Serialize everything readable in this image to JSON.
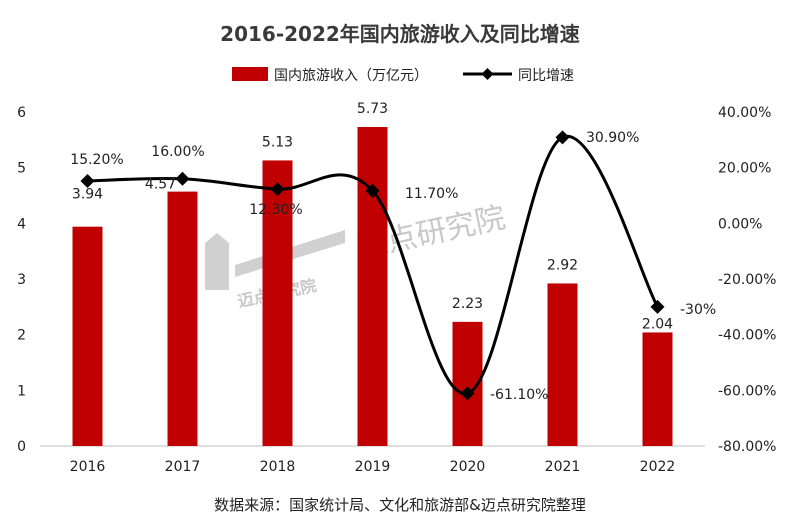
{
  "title": "2016-2022年国内旅游收入及同比增速",
  "source": "数据来源：国家统计局、文化和旅游部&迈点研究院整理",
  "watermark": {
    "text": "迈点研究院",
    "logo_text": "迈点研究院"
  },
  "colors": {
    "bar": "#c00000",
    "line": "#000000",
    "axis": "#bfbfbf"
  },
  "chart_data": {
    "type": "bar",
    "categories": [
      "2016",
      "2017",
      "2018",
      "2019",
      "2020",
      "2021",
      "2022"
    ],
    "series": [
      {
        "name": "国内旅游收入（万亿元）",
        "type": "bar",
        "axis": "left",
        "values": [
          3.94,
          4.57,
          5.13,
          5.73,
          2.23,
          2.92,
          2.04
        ],
        "labels": [
          "3.94",
          "4.57",
          "5.13",
          "5.73",
          "2.23",
          "2.92",
          "2.04"
        ]
      },
      {
        "name": "同比增速",
        "type": "line",
        "axis": "right",
        "marker": "diamond",
        "smooth": true,
        "values": [
          15.2,
          16.0,
          12.3,
          11.7,
          -61.1,
          30.9,
          -30.0
        ],
        "labels": [
          "15.20%",
          "16.00%",
          "12.30%",
          "11.70%",
          "-61.10%",
          "30.90%",
          "-30%"
        ]
      }
    ],
    "y_left": {
      "ylim": [
        0,
        6
      ],
      "ticks": [
        "0",
        "1",
        "2",
        "3",
        "4",
        "5",
        "6"
      ]
    },
    "y_right": {
      "ylim": [
        -80,
        40
      ],
      "ticks": [
        "-80.00%",
        "-60.00%",
        "-40.00%",
        "-20.00%",
        "0.00%",
        "20.00%",
        "40.00%"
      ]
    },
    "grid": false,
    "legend": "top-center"
  }
}
